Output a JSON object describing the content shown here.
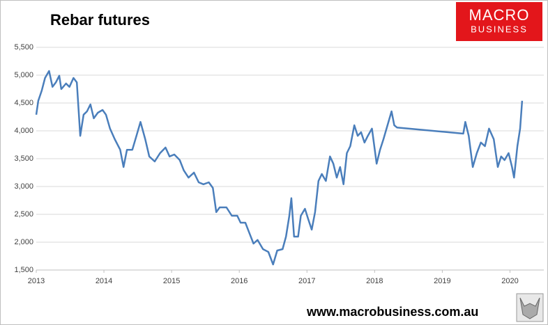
{
  "chart_data": {
    "type": "line",
    "title": "Rebar futures",
    "annotations": [
      "MACRO",
      "BUSINESS",
      "www.macrobusiness.com.au"
    ],
    "series": [
      {
        "name": "Rebar futures",
        "color": "#4a7ebb",
        "x": [
          2013.0,
          2013.03,
          2013.08,
          2013.13,
          2013.19,
          2013.24,
          2013.29,
          2013.34,
          2013.37,
          2013.44,
          2013.49,
          2013.55,
          2013.6,
          2013.65,
          2013.7,
          2013.75,
          2013.8,
          2013.85,
          2013.91,
          2013.98,
          2014.03,
          2014.09,
          2014.16,
          2014.24,
          2014.29,
          2014.34,
          2014.42,
          2014.48,
          2014.54,
          2014.61,
          2014.67,
          2014.75,
          2014.83,
          2014.91,
          2014.97,
          2015.04,
          2015.12,
          2015.18,
          2015.25,
          2015.33,
          2015.4,
          2015.47,
          2015.55,
          2015.61,
          2015.66,
          2015.71,
          2015.81,
          2015.89,
          2015.97,
          2016.02,
          2016.09,
          2016.15,
          2016.21,
          2016.27,
          2016.35,
          2016.43,
          2016.5,
          2016.56,
          2016.64,
          2016.69,
          2016.74,
          2016.77,
          2016.81,
          2016.87,
          2016.91,
          2016.97,
          2017.02,
          2017.07,
          2017.12,
          2017.17,
          2017.22,
          2017.28,
          2017.34,
          2017.39,
          2017.44,
          2017.49,
          2017.54,
          2017.59,
          2017.64,
          2017.7,
          2017.75,
          2017.8,
          2017.85,
          2017.9,
          2017.96,
          2018.03,
          2018.08,
          2018.13,
          2018.19,
          2018.25,
          2018.29,
          2018.33,
          2019.31,
          2019.34,
          2019.39,
          2019.45,
          2019.51,
          2019.57,
          2019.63,
          2019.69,
          2019.76,
          2019.82,
          2019.87,
          2019.92,
          2019.98,
          2020.03,
          2020.06,
          2020.11,
          2020.15,
          2020.18
        ],
        "values": [
          4290,
          4540,
          4720,
          4950,
          5075,
          4790,
          4870,
          4990,
          4750,
          4850,
          4790,
          4950,
          4870,
          3910,
          4290,
          4350,
          4475,
          4225,
          4325,
          4375,
          4290,
          4040,
          3850,
          3660,
          3350,
          3660,
          3660,
          3910,
          4160,
          3850,
          3540,
          3450,
          3600,
          3700,
          3540,
          3575,
          3475,
          3290,
          3160,
          3250,
          3075,
          3040,
          3075,
          2975,
          2540,
          2625,
          2625,
          2475,
          2475,
          2350,
          2350,
          2160,
          1975,
          2040,
          1875,
          1825,
          1600,
          1850,
          1875,
          2100,
          2475,
          2790,
          2100,
          2100,
          2475,
          2600,
          2410,
          2225,
          2540,
          3100,
          3225,
          3100,
          3540,
          3410,
          3160,
          3350,
          3040,
          3600,
          3725,
          4100,
          3910,
          3975,
          3790,
          3910,
          4040,
          3410,
          3660,
          3850,
          4100,
          4350,
          4100,
          4060,
          3950,
          4160,
          3910,
          3350,
          3600,
          3790,
          3725,
          4040,
          3850,
          3350,
          3540,
          3475,
          3600,
          3350,
          3160,
          3725,
          4040,
          4540
        ]
      }
    ],
    "xlim": [
      2013,
      2020.5
    ],
    "xticks": [
      2013,
      2014,
      2015,
      2016,
      2017,
      2018,
      2019,
      2020
    ],
    "ylim": [
      1500,
      5500
    ],
    "yticks": [
      {
        "value": 1500,
        "label": "1,500"
      },
      {
        "value": 2000,
        "label": "2,000"
      },
      {
        "value": 2500,
        "label": "2,500"
      },
      {
        "value": 3000,
        "label": "3,000"
      },
      {
        "value": 3500,
        "label": "3,500"
      },
      {
        "value": 4000,
        "label": "4,000"
      },
      {
        "value": 4500,
        "label": "4,500"
      },
      {
        "value": 5000,
        "label": "5,000"
      },
      {
        "value": 5500,
        "label": "5,500"
      }
    ],
    "grid": true
  }
}
